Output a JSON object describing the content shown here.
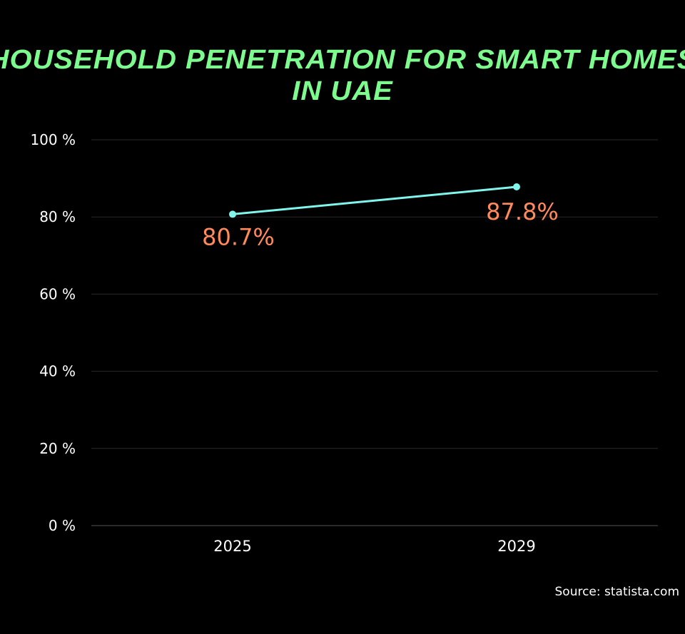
{
  "chart_data": {
    "type": "line",
    "title": "HOUSEHOLD PENETRATION FOR SMART HOMES IN UAE",
    "categories": [
      "2025",
      "2029"
    ],
    "series": [
      {
        "values": [
          80.7,
          87.8
        ],
        "labels": [
          "80.7%",
          "87.8%"
        ]
      }
    ],
    "ylim": [
      0,
      100
    ],
    "yticks": [
      0,
      20,
      40,
      60,
      80,
      100
    ],
    "ytick_labels": [
      "0 %",
      "20 %",
      "40 %",
      "60 %",
      "80 %",
      "100 %"
    ],
    "grid": true,
    "colors": {
      "title": "#7dfb8e",
      "line": "#7ff5ec",
      "label": "#ff8a5c",
      "grid": "#2a2a2a",
      "text": "#ffffff"
    }
  },
  "source": "Source: statista.com"
}
